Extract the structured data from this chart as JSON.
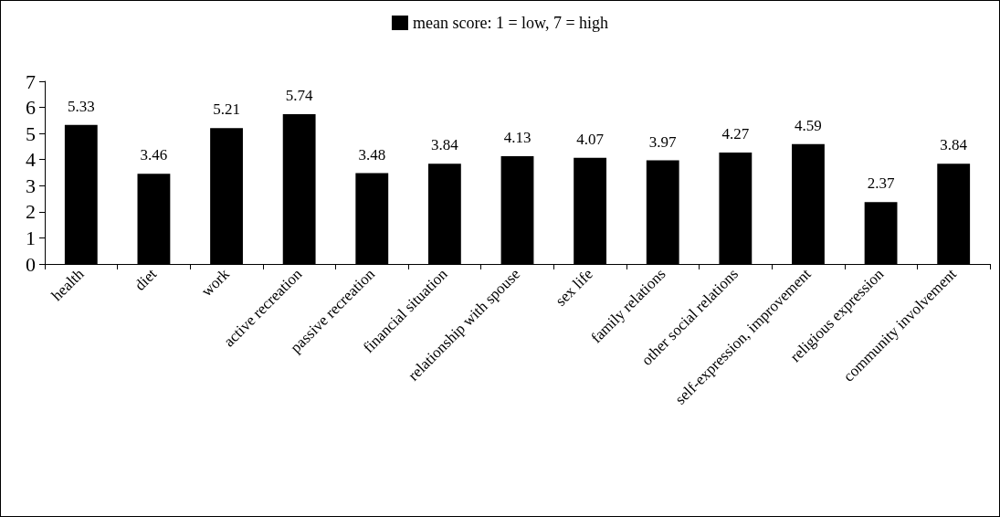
{
  "chart_data": {
    "type": "bar",
    "categories": [
      "health",
      "diet",
      "work",
      "active recreation",
      "passive recreation",
      "financial situation",
      "relationship with spouse",
      "sex life",
      "family relations",
      "other social relations",
      "self-expression, improvement",
      "religious expression",
      "community involvement"
    ],
    "series": [
      {
        "name": "mean score: 1 = low, 7 = high",
        "color": "#000000",
        "values": [
          5.33,
          3.46,
          5.21,
          5.74,
          3.48,
          3.84,
          4.13,
          4.07,
          3.97,
          4.27,
          4.59,
          2.37,
          3.84
        ]
      }
    ],
    "ylim": [
      0,
      7
    ],
    "yticks": [
      0,
      1,
      2,
      3,
      4,
      5,
      6,
      7
    ],
    "grid": false,
    "legend": "top",
    "data_labels": true
  }
}
